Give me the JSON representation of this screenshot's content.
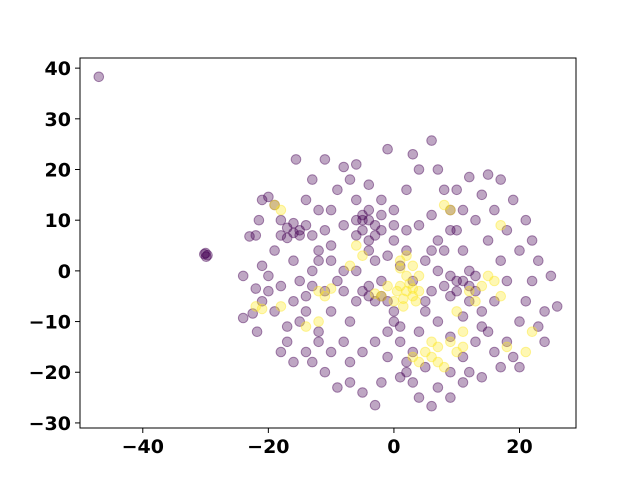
{
  "chart_data": {
    "type": "scatter",
    "title": "",
    "xlabel": "",
    "ylabel": "",
    "xlim": [
      -50,
      29
    ],
    "ylim": [
      -31,
      42
    ],
    "xticks": [
      -40,
      -20,
      0,
      20
    ],
    "yticks": [
      -30,
      -20,
      -10,
      0,
      10,
      20,
      30,
      40
    ],
    "xtick_labels": [
      "−40",
      "−20",
      "0",
      "20"
    ],
    "ytick_labels": [
      "−30",
      "−20",
      "−10",
      "0",
      "10",
      "20",
      "30",
      "40"
    ],
    "grid": false,
    "legend": "none",
    "marker_alpha": 0.35,
    "colors": {
      "class_0": "#440154",
      "class_1": "#fde725"
    },
    "series": [
      {
        "color": "#440154",
        "points": [
          [
            -47,
            38.3
          ],
          [
            -30,
            3.5
          ],
          [
            -29.7,
            3.1
          ],
          [
            -29.9,
            2.8
          ],
          [
            -30.2,
            3.3
          ],
          [
            -24,
            -1
          ],
          [
            -24,
            -9.3
          ],
          [
            -22.5,
            -8.4
          ],
          [
            -22,
            -3.5
          ],
          [
            -21.8,
            -12
          ],
          [
            -21,
            -6
          ],
          [
            -23,
            6.8
          ],
          [
            -22,
            7
          ],
          [
            -21.5,
            10
          ],
          [
            -21,
            14
          ],
          [
            -20,
            14.6
          ],
          [
            -19,
            13
          ],
          [
            -18,
            7
          ],
          [
            -17,
            8.5
          ],
          [
            -16,
            9.4
          ],
          [
            -15.6,
            22
          ],
          [
            -15,
            7
          ],
          [
            -16,
            2
          ],
          [
            -18,
            -3
          ],
          [
            -19,
            -8
          ],
          [
            -17,
            -14
          ],
          [
            -16,
            -18
          ],
          [
            -15,
            -10
          ],
          [
            -14,
            -5
          ],
          [
            -13,
            0
          ],
          [
            -12,
            4
          ],
          [
            -11,
            8
          ],
          [
            -10,
            12
          ],
          [
            -9,
            16
          ],
          [
            -8,
            20.5
          ],
          [
            -7,
            18
          ],
          [
            -6,
            14
          ],
          [
            -5,
            10
          ],
          [
            -4,
            6
          ],
          [
            -3,
            2
          ],
          [
            -2,
            -2
          ],
          [
            -1,
            -6
          ],
          [
            0,
            -10
          ],
          [
            1,
            -14
          ],
          [
            2,
            -18
          ],
          [
            3,
            -22
          ],
          [
            4,
            -25
          ],
          [
            -3,
            -26.5
          ],
          [
            -5,
            -24
          ],
          [
            -7,
            -22
          ],
          [
            -9,
            -23
          ],
          [
            -11,
            -20
          ],
          [
            -13,
            -18
          ],
          [
            -14,
            -16
          ],
          [
            -12,
            -12
          ],
          [
            -10,
            -8
          ],
          [
            -8,
            -4
          ],
          [
            -6,
            0
          ],
          [
            -4,
            4
          ],
          [
            -2,
            8
          ],
          [
            0,
            12
          ],
          [
            2,
            16
          ],
          [
            4,
            20
          ],
          [
            -1,
            24
          ],
          [
            3,
            23
          ],
          [
            6,
            25.7
          ],
          [
            7,
            20
          ],
          [
            8,
            16
          ],
          [
            9,
            12
          ],
          [
            10,
            8
          ],
          [
            11,
            4
          ],
          [
            12,
            0
          ],
          [
            13,
            -4
          ],
          [
            14,
            -8
          ],
          [
            15,
            -12
          ],
          [
            16,
            -16
          ],
          [
            17,
            -19
          ],
          [
            14,
            -21
          ],
          [
            11,
            -22
          ],
          [
            9,
            -25
          ],
          [
            6,
            -26.7
          ],
          [
            12,
            -20
          ],
          [
            18,
            -14
          ],
          [
            20,
            -10
          ],
          [
            21,
            -6
          ],
          [
            22,
            -2
          ],
          [
            23,
            2
          ],
          [
            22,
            6
          ],
          [
            21,
            10
          ],
          [
            19,
            14
          ],
          [
            17,
            18
          ],
          [
            15,
            19
          ],
          [
            12,
            18.5
          ],
          [
            10,
            16
          ],
          [
            24,
            -8
          ],
          [
            25,
            -1
          ],
          [
            26,
            -7
          ],
          [
            24,
            -14
          ],
          [
            23,
            -11
          ],
          [
            20,
            4
          ],
          [
            18,
            8
          ],
          [
            16,
            12
          ],
          [
            14,
            15
          ],
          [
            13,
            10
          ],
          [
            11,
            12
          ],
          [
            9,
            8
          ],
          [
            8,
            4
          ],
          [
            7,
            0
          ],
          [
            6,
            -4
          ],
          [
            5,
            -8
          ],
          [
            4,
            -12
          ],
          [
            3,
            -16
          ],
          [
            2,
            -20
          ],
          [
            -3,
            9
          ],
          [
            -5,
            11
          ],
          [
            -6,
            7
          ],
          [
            -4,
            12
          ],
          [
            -2,
            11
          ],
          [
            -6,
            10
          ],
          [
            -5,
            8
          ],
          [
            -3,
            7
          ],
          [
            -4,
            10
          ],
          [
            8,
            -3
          ],
          [
            9,
            -1
          ],
          [
            10,
            -4
          ],
          [
            11,
            -2
          ],
          [
            12,
            -3
          ],
          [
            9,
            -5
          ],
          [
            10,
            -2
          ],
          [
            13,
            -1
          ],
          [
            -4,
            -5
          ],
          [
            -5,
            -4
          ],
          [
            -3,
            -6
          ],
          [
            -4,
            -3
          ],
          [
            -2,
            -5
          ],
          [
            -6,
            -6
          ],
          [
            -15,
            8
          ],
          [
            -16,
            7.5
          ],
          [
            -14,
            9
          ],
          [
            -17,
            6.5
          ],
          [
            -13,
            7
          ],
          [
            0,
            -8
          ],
          [
            1,
            -11
          ],
          [
            -1,
            -12
          ],
          [
            5,
            2
          ],
          [
            6,
            4
          ],
          [
            7,
            6
          ],
          [
            -8,
            0
          ],
          [
            -9,
            -2
          ],
          [
            -10,
            2
          ],
          [
            -11,
            -4
          ],
          [
            -7,
            -10
          ],
          [
            -8,
            -14
          ],
          [
            16,
            -6
          ],
          [
            18,
            -2
          ],
          [
            17,
            2
          ],
          [
            15,
            6
          ],
          [
            19,
            -17
          ],
          [
            20,
            -19
          ],
          [
            -20,
            -4
          ],
          [
            -21,
            1
          ],
          [
            -19,
            4
          ],
          [
            -18,
            10
          ],
          [
            -20,
            -1
          ],
          [
            -14,
            -8
          ],
          [
            -12,
            -14
          ],
          [
            -10,
            -16
          ],
          [
            -7,
            -18
          ],
          [
            -5,
            -16
          ],
          [
            -3,
            -14
          ],
          [
            -1,
            -17
          ],
          [
            1,
            -21
          ],
          [
            -2,
            -22
          ],
          [
            5,
            -19
          ],
          [
            7,
            -23
          ],
          [
            9,
            -20
          ],
          [
            11,
            -17
          ],
          [
            13,
            -14
          ],
          [
            14,
            -11
          ],
          [
            2,
            4
          ],
          [
            0,
            6
          ],
          [
            -1,
            3
          ],
          [
            1,
            1
          ],
          [
            3,
            -2
          ],
          [
            5,
            -6
          ],
          [
            7,
            -10
          ],
          [
            9,
            -13
          ],
          [
            11,
            -9
          ],
          [
            12,
            -6
          ],
          [
            6,
            11
          ],
          [
            4,
            9
          ],
          [
            2,
            8
          ],
          [
            0,
            9
          ],
          [
            -2,
            14
          ],
          [
            -4,
            17
          ],
          [
            -6,
            21
          ],
          [
            -11,
            22
          ],
          [
            -13,
            18
          ],
          [
            -14,
            14
          ],
          [
            -12,
            12
          ],
          [
            -8,
            9
          ],
          [
            -10,
            5
          ],
          [
            -12,
            2
          ],
          [
            -13,
            -3
          ],
          [
            -15,
            -2
          ],
          [
            -16,
            -6
          ],
          [
            -17,
            -11
          ],
          [
            -18,
            -16
          ]
        ]
      },
      {
        "color": "#fde725",
        "points": [
          [
            1,
            -3
          ],
          [
            2,
            -4
          ],
          [
            3,
            -5
          ],
          [
            1.5,
            -5.5
          ],
          [
            2.5,
            -2.5
          ],
          [
            0.5,
            -4
          ],
          [
            3,
            -3.5
          ],
          [
            2,
            -1
          ],
          [
            1,
            0.5
          ],
          [
            0,
            -6
          ],
          [
            3.5,
            -6
          ],
          [
            4,
            -4
          ],
          [
            1.5,
            -7
          ],
          [
            -2,
            -5
          ],
          [
            -3,
            -4.5
          ],
          [
            -1,
            -3
          ],
          [
            -11,
            -5
          ],
          [
            -10,
            -3.5
          ],
          [
            -12,
            -4
          ],
          [
            2,
            3
          ],
          [
            3,
            1
          ],
          [
            4,
            -1
          ],
          [
            1,
            2
          ],
          [
            5,
            -16
          ],
          [
            6,
            -17
          ],
          [
            4,
            -18
          ],
          [
            7,
            -15
          ],
          [
            8,
            -19
          ],
          [
            3,
            -17
          ],
          [
            9,
            -14
          ],
          [
            10,
            -16
          ],
          [
            11,
            -15
          ],
          [
            7,
            -18
          ],
          [
            6,
            -14
          ],
          [
            -22,
            -7
          ],
          [
            -21,
            -7.5
          ],
          [
            -18,
            -7
          ],
          [
            -12,
            -10
          ],
          [
            -14,
            -11
          ],
          [
            -19,
            13
          ],
          [
            -18,
            12
          ],
          [
            9,
            12
          ],
          [
            8,
            13
          ],
          [
            16,
            -2
          ],
          [
            17,
            -5
          ],
          [
            15,
            -1
          ],
          [
            21,
            -16
          ],
          [
            22,
            -12
          ],
          [
            18,
            -15
          ],
          [
            17,
            9
          ],
          [
            13,
            -6
          ],
          [
            12,
            -4
          ],
          [
            14,
            -3
          ],
          [
            10,
            -8
          ],
          [
            11,
            -12
          ],
          [
            -6,
            5
          ],
          [
            -5,
            3
          ],
          [
            -7,
            1
          ]
        ]
      }
    ]
  }
}
